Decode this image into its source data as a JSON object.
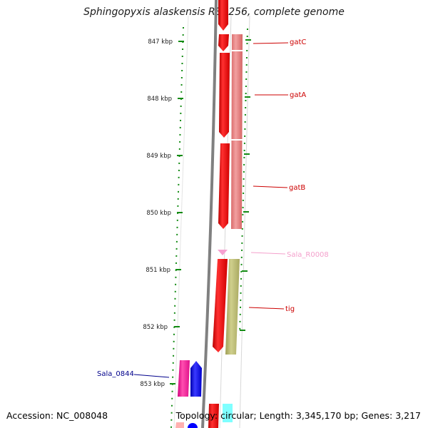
{
  "title": "Sphingopyxis alaskensis RB2256, complete genome",
  "footer": {
    "accession": "Accession: NC_008048",
    "summary": "Topology: circular; Length: 3,345,170 bp; Genes: 3,217"
  },
  "ruler": {
    "ticks": [
      {
        "label": "847 kbp"
      },
      {
        "label": "848 kbp"
      },
      {
        "label": "849 kbp"
      },
      {
        "label": "850 kbp"
      },
      {
        "label": "851 kbp"
      },
      {
        "label": "852 kbp"
      },
      {
        "label": "853 kbp"
      }
    ]
  },
  "colors": {
    "backbone": "#808080",
    "ruler": "#138b13",
    "cds": "#ff0000",
    "gene_light": "#e67c7c",
    "rrna": "#ff9ed0",
    "tig_box": "#b8b874",
    "hypothetical": "#ff1493",
    "blue": "#0000ff",
    "cyan": "#7fffff"
  },
  "genes": [
    {
      "name": "gatC",
      "color": "#cc0000"
    },
    {
      "name": "gatA",
      "color": "#cc0000"
    },
    {
      "name": "gatB",
      "color": "#cc0000"
    },
    {
      "name": "Sala_R0008",
      "color": "#f4a0cc"
    },
    {
      "name": "tig",
      "color": "#cc0000"
    },
    {
      "name": "Sala_0844",
      "color": "#00008b"
    }
  ]
}
